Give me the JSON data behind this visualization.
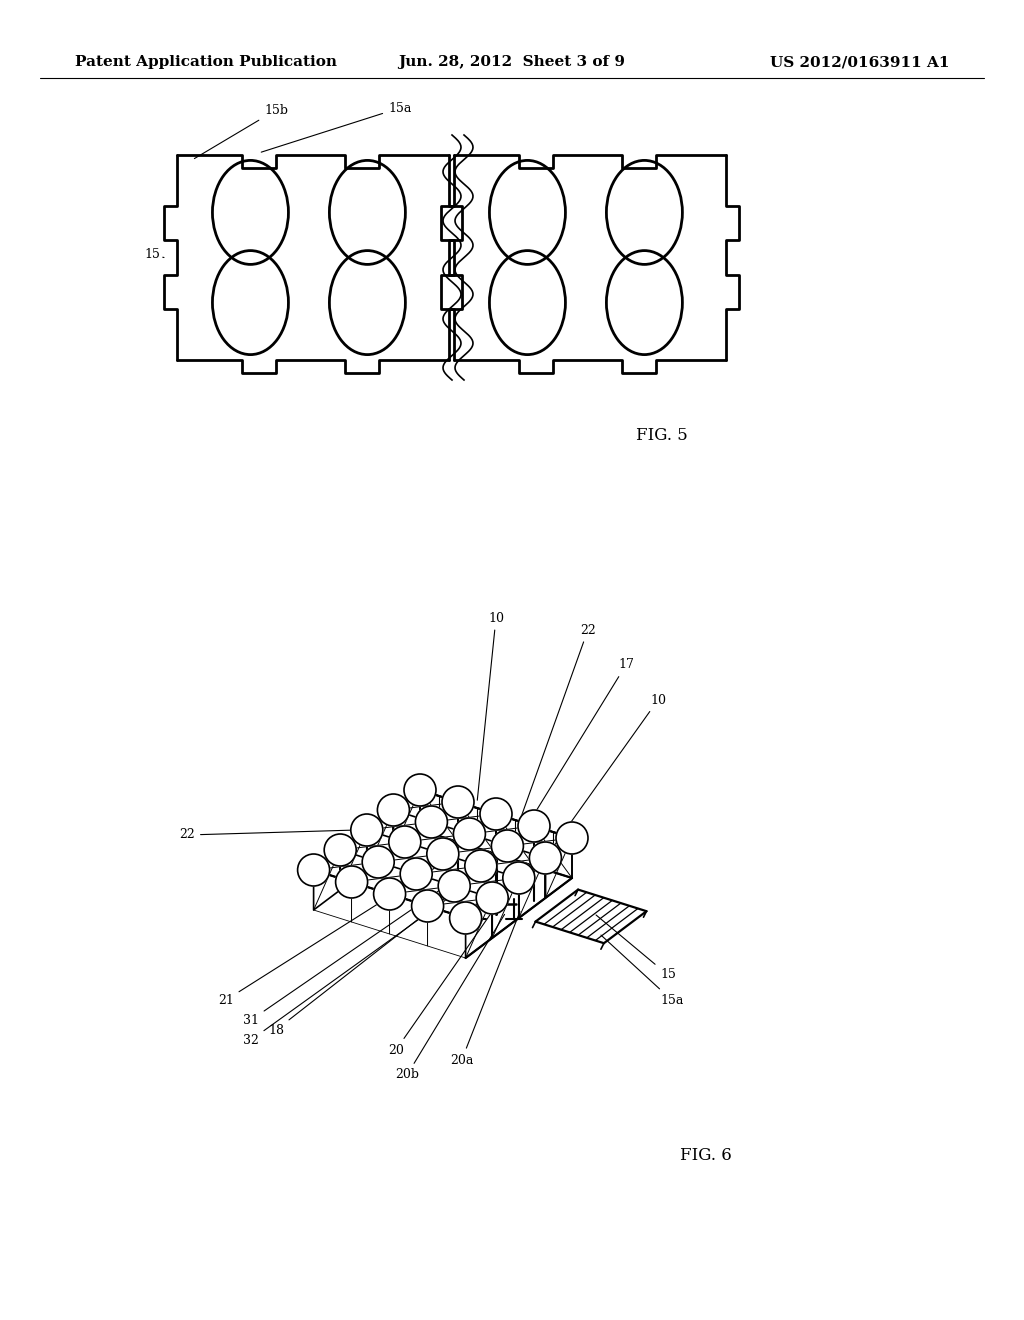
{
  "background_color": "#ffffff",
  "header_left": "Patent Application Publication",
  "header_center": "Jun. 28, 2012  Sheet 3 of 9",
  "header_right": "US 2012/0163911 A1",
  "fig5_label": "FIG. 5",
  "fig6_label": "FIG. 6",
  "ann_fontsize": 9,
  "label_fontsize": 12,
  "header_fontsize": 11
}
